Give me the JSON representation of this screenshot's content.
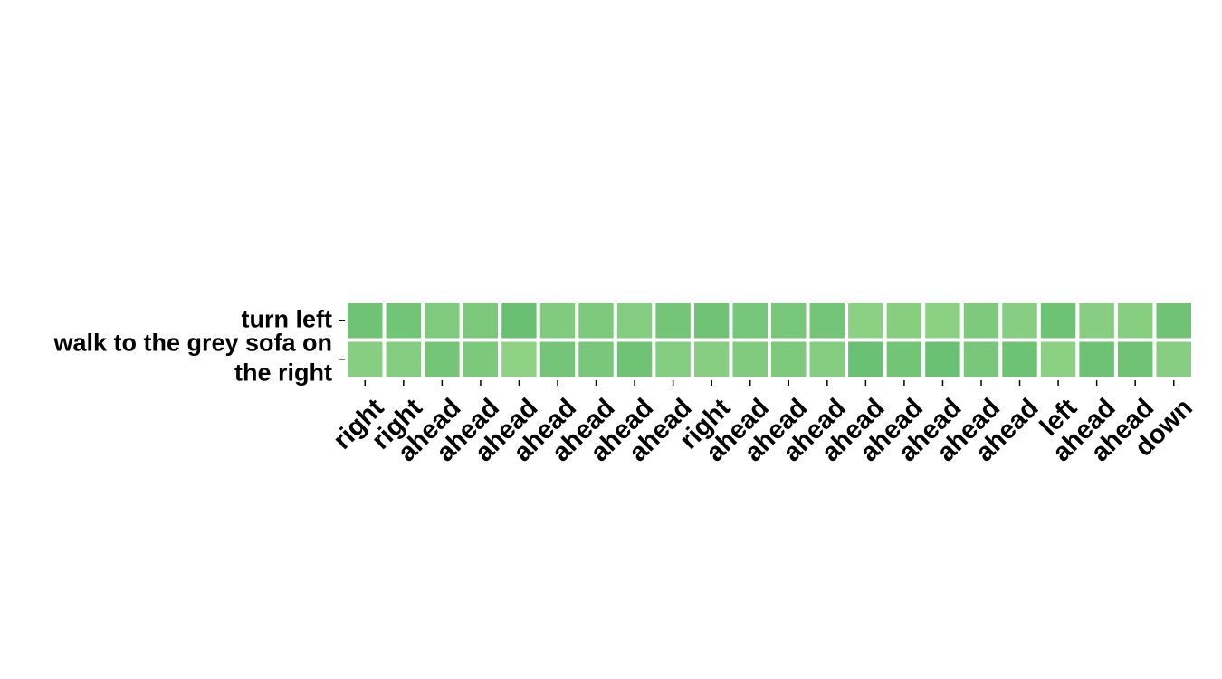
{
  "chart_data": {
    "type": "heatmap",
    "title": "",
    "xlabel": "",
    "ylabel": "",
    "rows": [
      {
        "label_lines": [
          "turn left"
        ]
      },
      {
        "label_lines": [
          "walk to the grey sofa on",
          "the right"
        ]
      }
    ],
    "columns": [
      "right",
      "right",
      "ahead",
      "ahead",
      "ahead",
      "ahead",
      "ahead",
      "ahead",
      "ahead",
      "right",
      "ahead",
      "ahead",
      "ahead",
      "ahead",
      "ahead",
      "ahead",
      "ahead",
      "ahead",
      "left",
      "ahead",
      "ahead",
      "down"
    ],
    "values": [
      [
        0.62,
        0.6,
        0.45,
        0.5,
        0.7,
        0.42,
        0.46,
        0.4,
        0.58,
        0.62,
        0.55,
        0.52,
        0.58,
        0.3,
        0.36,
        0.3,
        0.46,
        0.34,
        0.66,
        0.34,
        0.36,
        0.62
      ],
      [
        0.34,
        0.4,
        0.58,
        0.48,
        0.28,
        0.58,
        0.52,
        0.62,
        0.4,
        0.34,
        0.42,
        0.46,
        0.4,
        0.68,
        0.6,
        0.68,
        0.52,
        0.66,
        0.3,
        0.64,
        0.62,
        0.34
      ]
    ],
    "colormap": {
      "low": "#a6dc92",
      "high": "#4fb464"
    },
    "grid": false,
    "legend": "none"
  }
}
